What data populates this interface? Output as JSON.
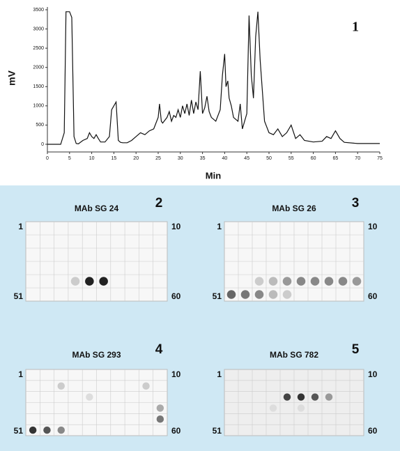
{
  "chart_data": {
    "type": "line",
    "panel_label": "1",
    "y_label": "mV",
    "x_label": "Min",
    "color": "#111111",
    "xlim": [
      0,
      75
    ],
    "ylim": [
      -200,
      3500
    ],
    "xticks": [
      0,
      5,
      10,
      15,
      20,
      25,
      30,
      35,
      40,
      45,
      50,
      55,
      60,
      65,
      70,
      75
    ],
    "yticks": [
      0,
      500,
      1000,
      1500,
      2000,
      2500,
      3000,
      3500
    ],
    "x": [
      0,
      3,
      3.8,
      4.2,
      4.5,
      5,
      5.5,
      6,
      6.5,
      7,
      8,
      9,
      9.5,
      10,
      10.5,
      11,
      11.5,
      12,
      13,
      14,
      14.5,
      15,
      15.5,
      16,
      16.5,
      17,
      18,
      19,
      20,
      21,
      22,
      23,
      24,
      25,
      25.3,
      25.7,
      26,
      27,
      27.5,
      28,
      28.5,
      29,
      29.5,
      30,
      30.5,
      31,
      31.5,
      32,
      32.5,
      33,
      33.5,
      34,
      34.5,
      35,
      35.5,
      36,
      36.5,
      37,
      38,
      39,
      39.5,
      40,
      40.3,
      40.7,
      41,
      41.5,
      42,
      43,
      43.5,
      44,
      45,
      45.5,
      46,
      46.5,
      47,
      47.5,
      48,
      49,
      50,
      51,
      52,
      53,
      54,
      55,
      56,
      57,
      58,
      60,
      62,
      63,
      64,
      65,
      66,
      67,
      70,
      75
    ],
    "values": [
      0,
      0,
      300,
      3450,
      3450,
      3450,
      3300,
      200,
      20,
      10,
      100,
      150,
      300,
      200,
      150,
      250,
      150,
      60,
      60,
      200,
      900,
      1000,
      1100,
      100,
      50,
      40,
      40,
      100,
      200,
      300,
      250,
      350,
      400,
      700,
      1050,
      600,
      550,
      700,
      850,
      600,
      750,
      700,
      900,
      700,
      1000,
      800,
      1050,
      750,
      1150,
      800,
      1100,
      900,
      1900,
      800,
      950,
      1250,
      850,
      700,
      600,
      900,
      1800,
      2350,
      1500,
      1650,
      1200,
      1000,
      700,
      600,
      1050,
      400,
      800,
      3350,
      1800,
      1200,
      2800,
      3450,
      2200,
      600,
      300,
      250,
      400,
      200,
      300,
      500,
      150,
      250,
      100,
      60,
      80,
      200,
      150,
      350,
      150,
      50,
      20,
      20
    ]
  },
  "blots": [
    {
      "panel_label": "2",
      "title": "MAb SG 24",
      "top_left": "1",
      "top_right": "10",
      "bottom_left": "51",
      "bottom_right": "60"
    },
    {
      "panel_label": "3",
      "title": "MAb SG 26",
      "top_left": "1",
      "top_right": "10",
      "bottom_left": "51",
      "bottom_right": "60"
    },
    {
      "panel_label": "4",
      "title": "MAb SG 293",
      "top_left": "1",
      "top_right": "10",
      "bottom_left": "51",
      "bottom_right": "60"
    },
    {
      "panel_label": "5",
      "title": "MAb SG 782",
      "top_left": "1",
      "top_right": "10",
      "bottom_left": "51",
      "bottom_right": "60"
    }
  ]
}
